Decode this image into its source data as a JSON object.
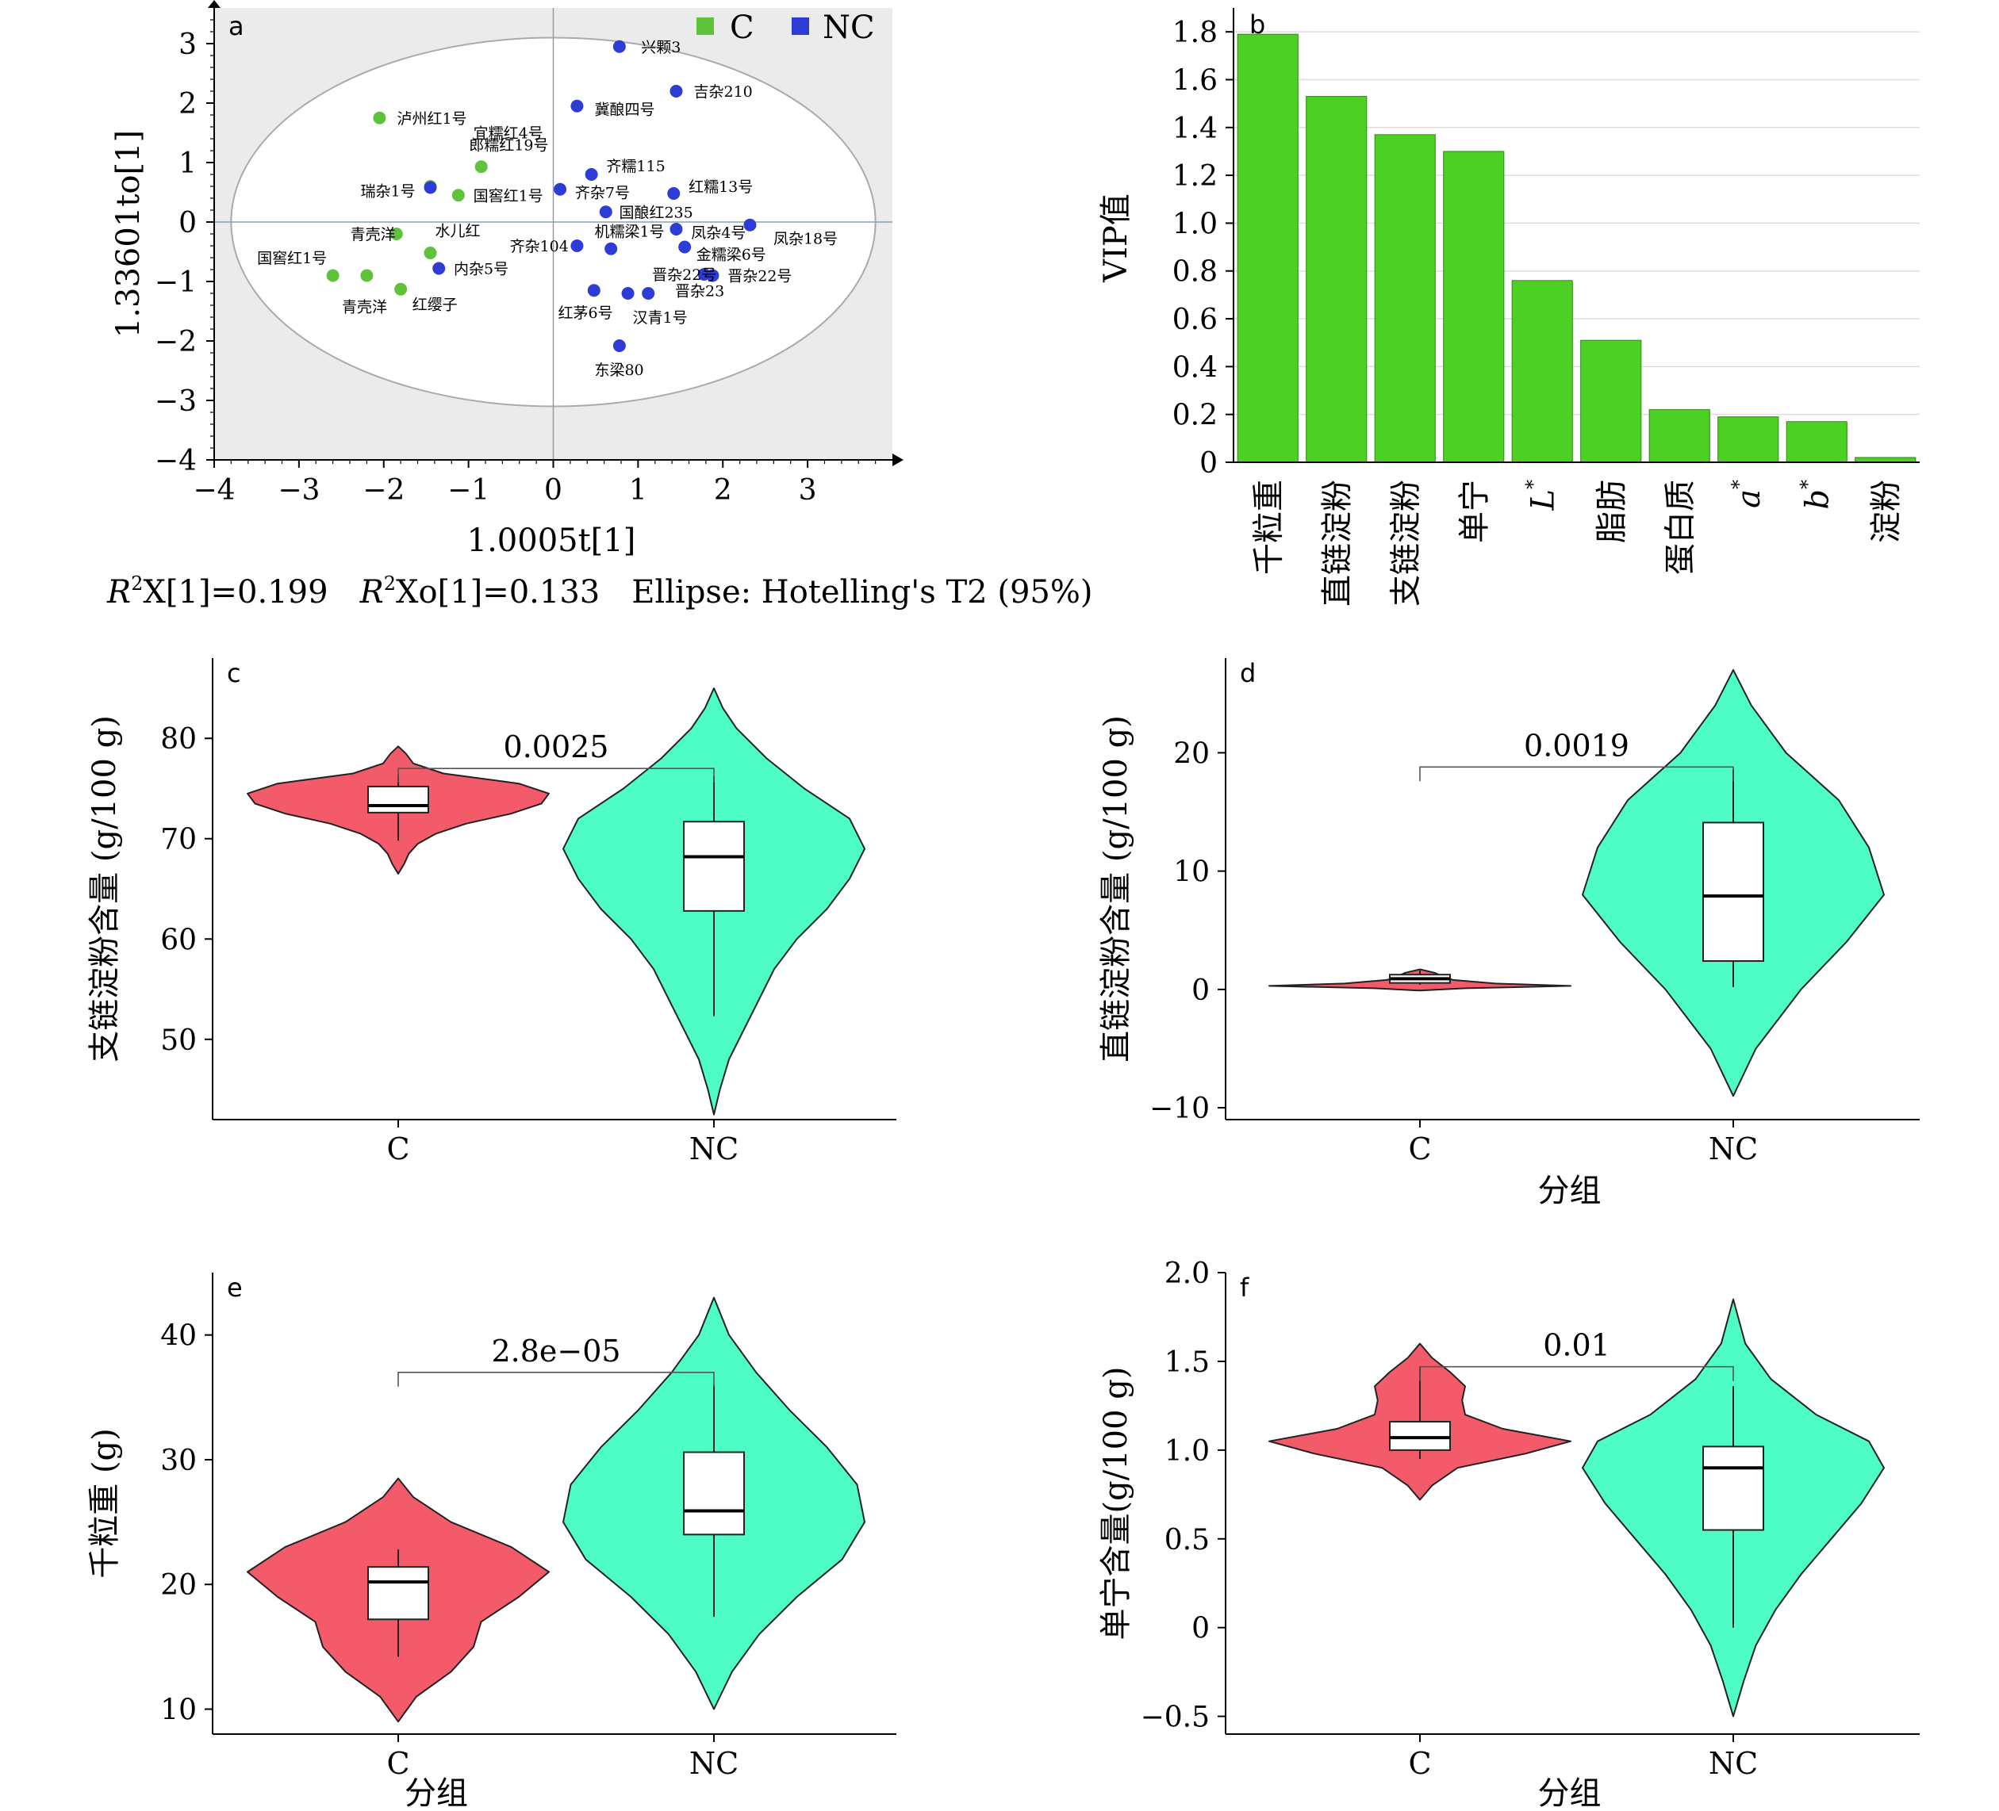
{
  "chart_data": [
    {
      "panel": "a",
      "type": "scatter",
      "title": "",
      "xlabel": "1.0005t[1]",
      "ylabel": "1.33601to[1]",
      "xlim": [
        -4,
        4
      ],
      "ylim": [
        -4,
        3.6
      ],
      "xticks": [
        -4,
        -3,
        -2,
        -1,
        0,
        1,
        2,
        3
      ],
      "yticks": [
        3,
        2,
        1,
        0,
        -1,
        -2,
        -3,
        -4
      ],
      "legend": [
        {
          "name": "C",
          "color": "#5ec33b"
        },
        {
          "name": "NC",
          "color": "#2e3cd6"
        }
      ],
      "caption_r2x": "X[1]=0.199",
      "caption_r2xo": "Xo[1]=0.133",
      "caption_ellipse": "Ellipse: Hotelling's T2 (95%)",
      "ellipse": {
        "cx": 0,
        "cy": 0,
        "rx": 3.8,
        "ry": 3.1
      },
      "series": [
        {
          "name": "C",
          "color": "#5ec33b",
          "points": [
            {
              "x": -2.05,
              "y": 1.75,
              "label": "泸州红1号",
              "lx": 0.15,
              "ly": 0.0
            },
            {
              "x": -0.85,
              "y": 0.93,
              "label": "郎糯红19号",
              "lx": -0.2,
              "ly": 0.37
            },
            {
              "x": -1.45,
              "y": 0.6,
              "label": "宜糯红4号",
              "lx": 0.45,
              "ly": 0.9
            },
            {
              "x": -1.12,
              "y": 0.45,
              "label": "国窖红1号",
              "lx": 0.12,
              "ly": 0.0
            },
            {
              "x": -1.85,
              "y": -0.2,
              "label": "青壳洋",
              "lx": -0.6,
              "ly": 0.0
            },
            {
              "x": -1.45,
              "y": -0.52,
              "label": "水儿红",
              "lx": 0.0,
              "ly": 0.38
            },
            {
              "x": -2.6,
              "y": -0.9,
              "label": "国窖红1号",
              "lx": -0.95,
              "ly": 0.3
            },
            {
              "x": -2.2,
              "y": -0.9,
              "label": "青壳洋",
              "lx": -0.35,
              "ly": -0.52
            },
            {
              "x": -1.8,
              "y": -1.13,
              "label": "红缨子",
              "lx": 0.08,
              "ly": -0.25
            }
          ]
        },
        {
          "name": "NC",
          "color": "#2e3cd6",
          "points": [
            {
              "x": 0.78,
              "y": 2.95,
              "label": "兴颗3",
              "lx": 0.2,
              "ly": 0.0
            },
            {
              "x": 1.45,
              "y": 2.2,
              "label": "吉杂210",
              "lx": 0.15,
              "ly": 0.0
            },
            {
              "x": 0.28,
              "y": 1.95,
              "label": "冀酿四号",
              "lx": 0.15,
              "ly": -0.05
            },
            {
              "x": 0.45,
              "y": 0.8,
              "label": "齐糯115",
              "lx": 0.12,
              "ly": 0.15
            },
            {
              "x": -1.45,
              "y": 0.58,
              "label": "瑞杂1号",
              "lx": -0.88,
              "ly": -0.05
            },
            {
              "x": 0.08,
              "y": 0.55,
              "label": "齐杂7号",
              "lx": 0.12,
              "ly": -0.05
            },
            {
              "x": 1.42,
              "y": 0.48,
              "label": "红糯13号",
              "lx": 0.12,
              "ly": 0.12
            },
            {
              "x": 0.62,
              "y": 0.17,
              "label": "国酿红235",
              "lx": 0.1,
              "ly": 0.0
            },
            {
              "x": 2.32,
              "y": -0.05,
              "label": "凤杂18号",
              "lx": 0.22,
              "ly": -0.22
            },
            {
              "x": 1.45,
              "y": -0.12,
              "label": "凤杂4号",
              "lx": 0.12,
              "ly": -0.05
            },
            {
              "x": 0.68,
              "y": -0.45,
              "label": "机糯梁1号",
              "lx": -0.25,
              "ly": 0.3
            },
            {
              "x": 0.28,
              "y": -0.4,
              "label": "齐杂104",
              "lx": -0.85,
              "ly": 0.0
            },
            {
              "x": 1.55,
              "y": -0.42,
              "label": "金糯梁6号",
              "lx": 0.08,
              "ly": -0.12
            },
            {
              "x": -1.35,
              "y": -0.78,
              "label": "内杂5号",
              "lx": 0.12,
              "ly": 0.0
            },
            {
              "x": 1.78,
              "y": -0.88,
              "label": "晋杂22号",
              "lx": -0.67,
              "ly": 0.0
            },
            {
              "x": 1.88,
              "y": -0.9,
              "label": "晋杂22号",
              "lx": 0.12,
              "ly": 0.0
            },
            {
              "x": 0.48,
              "y": -1.15,
              "label": "红茅6号",
              "lx": -0.48,
              "ly": -0.37
            },
            {
              "x": 0.88,
              "y": -1.2,
              "label": "汉青1号",
              "lx": 0.0,
              "ly": -0.4
            },
            {
              "x": 1.12,
              "y": -1.2,
              "label": "晋杂23",
              "lx": 0.26,
              "ly": 0.05
            },
            {
              "x": 0.78,
              "y": -2.08,
              "label": "东梁80",
              "lx": -0.35,
              "ly": -0.4
            }
          ]
        }
      ]
    },
    {
      "panel": "b",
      "type": "bar",
      "title": "",
      "ylabel": "VIP值",
      "xlabel": "",
      "ylim": [
        0,
        1.9
      ],
      "yticks": [
        "0",
        "0.2",
        "0.4",
        "0.6",
        "0.8",
        "1.0",
        "1.2",
        "1.4",
        "1.6",
        "1.8"
      ],
      "color": "#4cd024",
      "categories": [
        {
          "name": "千粒重",
          "base": "",
          "sup": ""
        },
        {
          "name": "直链淀粉",
          "base": "",
          "sup": ""
        },
        {
          "name": "支链淀粉",
          "base": "",
          "sup": ""
        },
        {
          "name": "单宁",
          "base": "",
          "sup": ""
        },
        {
          "name": "",
          "base": "L",
          "sup": "*"
        },
        {
          "name": "脂肪",
          "base": "",
          "sup": ""
        },
        {
          "name": "蛋白质",
          "base": "",
          "sup": ""
        },
        {
          "name": "",
          "base": "a",
          "sup": "*"
        },
        {
          "name": "",
          "base": "b",
          "sup": "*"
        },
        {
          "name": "淀粉",
          "base": "",
          "sup": ""
        }
      ],
      "values": [
        1.79,
        1.53,
        1.37,
        1.3,
        0.76,
        0.51,
        0.22,
        0.19,
        0.17,
        0.02
      ]
    },
    {
      "panel": "c",
      "type": "violin",
      "title": "",
      "ylabel": "支链淀粉含量 (g/100 g)",
      "xlabel": "",
      "ylim": [
        42,
        88
      ],
      "yticks": [
        50,
        60,
        70,
        80
      ],
      "categories": [
        "C",
        "NC"
      ],
      "pvalue": "0.0025",
      "bracket_y": 77,
      "series": [
        {
          "name": "C",
          "color": "#f45b6a",
          "box": {
            "min": 69.8,
            "q1": 72.6,
            "median": 73.3,
            "q3": 75.2,
            "max": 76.4
          },
          "density": [
            [
              66.5,
              0
            ],
            [
              67.5,
              0.04
            ],
            [
              68.5,
              0.07
            ],
            [
              69.5,
              0.13
            ],
            [
              70.5,
              0.25
            ],
            [
              71.5,
              0.45
            ],
            [
              72.5,
              0.75
            ],
            [
              73.5,
              0.95
            ],
            [
              74.5,
              1.0
            ],
            [
              75.5,
              0.8
            ],
            [
              76.5,
              0.3
            ],
            [
              77.5,
              0.1
            ],
            [
              78.5,
              0.05
            ],
            [
              79.2,
              0
            ]
          ]
        },
        {
          "name": "NC",
          "color": "#4dfdc5",
          "box": {
            "min": 52.3,
            "q1": 62.8,
            "median": 68.2,
            "q3": 71.7,
            "max": 76.2
          },
          "density": [
            [
              42.5,
              0
            ],
            [
              45,
              0.04
            ],
            [
              48,
              0.1
            ],
            [
              51,
              0.2
            ],
            [
              54,
              0.3
            ],
            [
              57,
              0.4
            ],
            [
              60,
              0.55
            ],
            [
              63,
              0.75
            ],
            [
              66,
              0.9
            ],
            [
              69,
              1.0
            ],
            [
              72,
              0.9
            ],
            [
              75,
              0.6
            ],
            [
              78,
              0.35
            ],
            [
              81,
              0.15
            ],
            [
              83,
              0.06
            ],
            [
              85,
              0
            ]
          ]
        }
      ]
    },
    {
      "panel": "d",
      "type": "violin",
      "title": "",
      "ylabel": "直链淀粉含量 (g/100 g)",
      "xlabel": "分组",
      "ylim": [
        -11,
        28
      ],
      "yticks": [
        -10,
        0,
        10,
        20
      ],
      "categories": [
        "C",
        "NC"
      ],
      "pvalue": "0.0019",
      "bracket_y": 18.8,
      "series": [
        {
          "name": "C",
          "color": "#f45b6a",
          "box": {
            "min": 0.4,
            "q1": 0.55,
            "median": 0.9,
            "q3": 1.25,
            "max": 1.6
          },
          "density": [
            [
              -0.1,
              0
            ],
            [
              0.1,
              0.3
            ],
            [
              0.3,
              1.0
            ],
            [
              0.5,
              0.5
            ],
            [
              0.8,
              0.22
            ],
            [
              1.1,
              0.15
            ],
            [
              1.4,
              0.1
            ],
            [
              1.7,
              0
            ]
          ]
        },
        {
          "name": "NC",
          "color": "#4dfdc5",
          "box": {
            "min": 0.2,
            "q1": 2.4,
            "median": 7.9,
            "q3": 14.1,
            "max": 18.6
          },
          "density": [
            [
              -9,
              0
            ],
            [
              -5,
              0.15
            ],
            [
              0,
              0.45
            ],
            [
              4,
              0.75
            ],
            [
              8,
              1.0
            ],
            [
              12,
              0.9
            ],
            [
              16,
              0.7
            ],
            [
              20,
              0.35
            ],
            [
              24,
              0.12
            ],
            [
              27,
              0
            ]
          ]
        }
      ]
    },
    {
      "panel": "e",
      "type": "violin",
      "title": "",
      "ylabel": "千粒重 (g)",
      "xlabel": "分组",
      "ylim": [
        8,
        45
      ],
      "yticks": [
        10,
        20,
        30,
        40
      ],
      "categories": [
        "C",
        "NC"
      ],
      "pvalue": "2.8e−05",
      "bracket_y": 37,
      "series": [
        {
          "name": "C",
          "color": "#f45b6a",
          "box": {
            "min": 14.2,
            "q1": 17.2,
            "median": 20.2,
            "q3": 21.4,
            "max": 22.8
          },
          "density": [
            [
              9,
              0
            ],
            [
              11,
              0.12
            ],
            [
              13,
              0.35
            ],
            [
              15,
              0.5
            ],
            [
              17,
              0.55
            ],
            [
              19,
              0.8
            ],
            [
              21,
              1.0
            ],
            [
              23,
              0.75
            ],
            [
              25,
              0.35
            ],
            [
              27,
              0.1
            ],
            [
              28.5,
              0
            ]
          ]
        },
        {
          "name": "NC",
          "color": "#4dfdc5",
          "box": {
            "min": 17.4,
            "q1": 24.0,
            "median": 25.9,
            "q3": 30.6,
            "max": 36.0
          },
          "density": [
            [
              10,
              0
            ],
            [
              13,
              0.12
            ],
            [
              16,
              0.3
            ],
            [
              19,
              0.55
            ],
            [
              22,
              0.85
            ],
            [
              25,
              1.0
            ],
            [
              28,
              0.95
            ],
            [
              31,
              0.75
            ],
            [
              34,
              0.5
            ],
            [
              37,
              0.28
            ],
            [
              40,
              0.1
            ],
            [
              43,
              0
            ]
          ]
        }
      ]
    },
    {
      "panel": "f",
      "type": "violin",
      "title": "",
      "ylabel": "单宁含量(g/100 g)",
      "xlabel": "分组",
      "ylim": [
        -0.6,
        2.0
      ],
      "yticks": [
        "−0.5",
        "0",
        "0.5",
        "1.0",
        "1.5",
        "2.0"
      ],
      "ytick_values": [
        -0.5,
        0,
        0.5,
        1.0,
        1.5,
        2.0
      ],
      "categories": [
        "C",
        "NC"
      ],
      "pvalue": "0.01",
      "bracket_y": 1.47,
      "series": [
        {
          "name": "C",
          "color": "#f45b6a",
          "box": {
            "min": 0.95,
            "q1": 1.0,
            "median": 1.07,
            "q3": 1.16,
            "max": 1.47
          },
          "density": [
            [
              0.72,
              0
            ],
            [
              0.8,
              0.08
            ],
            [
              0.9,
              0.25
            ],
            [
              0.98,
              0.7
            ],
            [
              1.05,
              1.0
            ],
            [
              1.12,
              0.55
            ],
            [
              1.2,
              0.3
            ],
            [
              1.28,
              0.28
            ],
            [
              1.36,
              0.3
            ],
            [
              1.44,
              0.2
            ],
            [
              1.52,
              0.08
            ],
            [
              1.6,
              0
            ]
          ]
        },
        {
          "name": "NC",
          "color": "#4dfdc5",
          "box": {
            "min": 0.0,
            "q1": 0.55,
            "median": 0.9,
            "q3": 1.02,
            "max": 1.36
          },
          "density": [
            [
              -0.5,
              0
            ],
            [
              -0.3,
              0.07
            ],
            [
              -0.1,
              0.15
            ],
            [
              0.1,
              0.28
            ],
            [
              0.3,
              0.45
            ],
            [
              0.5,
              0.65
            ],
            [
              0.7,
              0.85
            ],
            [
              0.9,
              1.0
            ],
            [
              1.05,
              0.9
            ],
            [
              1.2,
              0.55
            ],
            [
              1.4,
              0.25
            ],
            [
              1.6,
              0.08
            ],
            [
              1.85,
              0
            ]
          ]
        }
      ]
    }
  ]
}
